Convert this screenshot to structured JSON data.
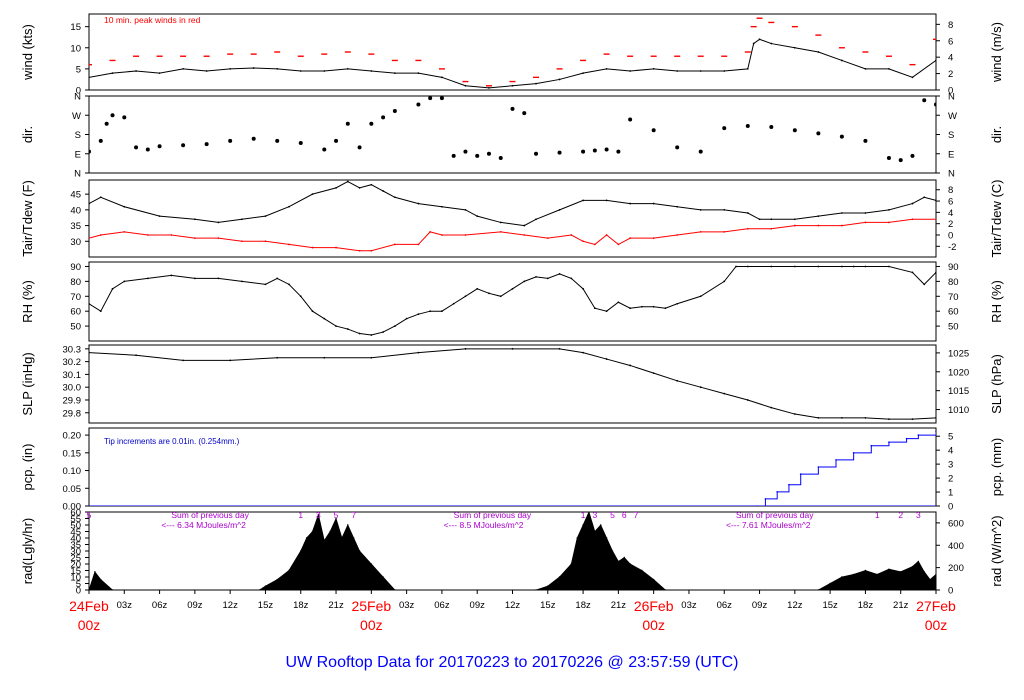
{
  "title": "UW Rooftop Data for 20170223  to  20170226 @ 23:57:59  (UTC)",
  "colors": {
    "primary": "#000000",
    "peak": "#ff0000",
    "dew": "#ff0000",
    "precip": "#0000ff",
    "annot_precip": "#0000cc",
    "solar_text": "#aa00cc",
    "date_red": "#ff0000",
    "title_blue": "#0000ff"
  },
  "time_axis": {
    "start_hour": 0,
    "end_hour": 72,
    "tick_labels": [
      {
        "h": 3,
        "label": "03z"
      },
      {
        "h": 6,
        "label": "06z"
      },
      {
        "h": 9,
        "label": "09z"
      },
      {
        "h": 12,
        "label": "12z"
      },
      {
        "h": 15,
        "label": "15z"
      },
      {
        "h": 18,
        "label": "18z"
      },
      {
        "h": 21,
        "label": "21z"
      },
      {
        "h": 27,
        "label": "03z"
      },
      {
        "h": 30,
        "label": "06z"
      },
      {
        "h": 33,
        "label": "09z"
      },
      {
        "h": 36,
        "label": "12z"
      },
      {
        "h": 39,
        "label": "15z"
      },
      {
        "h": 42,
        "label": "18z"
      },
      {
        "h": 45,
        "label": "21z"
      },
      {
        "h": 51,
        "label": "03z"
      },
      {
        "h": 54,
        "label": "06z"
      },
      {
        "h": 57,
        "label": "09z"
      },
      {
        "h": 60,
        "label": "12z"
      },
      {
        "h": 63,
        "label": "15z"
      },
      {
        "h": 66,
        "label": "18z"
      },
      {
        "h": 69,
        "label": "21z"
      }
    ],
    "date_labels": [
      {
        "h": 0,
        "date": "24Feb",
        "time": "00z"
      },
      {
        "h": 24,
        "date": "25Feb",
        "time": "00z"
      },
      {
        "h": 48,
        "date": "26Feb",
        "time": "00z"
      },
      {
        "h": 72,
        "date": "27Feb",
        "time": "00z"
      }
    ]
  },
  "chart_data": [
    {
      "type": "line",
      "name": "wind",
      "left_label": "wind (kts)",
      "right_label": "wind (m/s)",
      "annotation": "10 min. peak winds in red",
      "ylim": [
        0,
        18
      ],
      "yticks_left": [
        0,
        5,
        10,
        15
      ],
      "ylim_right": [
        0,
        9.26
      ],
      "yticks_right": [
        0,
        2,
        4,
        6,
        8
      ],
      "series": [
        {
          "name": "wind speed (kts)",
          "color": "#000000",
          "x": [
            0,
            2,
            4,
            6,
            8,
            10,
            12,
            14,
            16,
            18,
            20,
            22,
            24,
            26,
            28,
            30,
            32,
            34,
            36,
            38,
            40,
            42,
            44,
            46,
            48,
            50,
            52,
            54,
            56,
            56.5,
            57,
            58,
            60,
            62,
            64,
            66,
            68,
            70,
            72
          ],
          "y": [
            3,
            4,
            4.5,
            4,
            5,
            4.5,
            5,
            5.2,
            5,
            4.5,
            4.5,
            5,
            4.5,
            4,
            4,
            3,
            1,
            0.5,
            1,
            1.5,
            2.5,
            4,
            5,
            4.5,
            5,
            4.5,
            4.5,
            4.5,
            5,
            11,
            12,
            11,
            10,
            9,
            7,
            5,
            5,
            3,
            7
          ]
        },
        {
          "name": "10 min. peak (kts)",
          "color": "#ff0000",
          "x": [
            0,
            2,
            4,
            6,
            8,
            10,
            12,
            14,
            16,
            18,
            20,
            22,
            24,
            26,
            28,
            30,
            32,
            34,
            36,
            38,
            40,
            42,
            44,
            46,
            48,
            50,
            52,
            54,
            56,
            56.5,
            57,
            58,
            60,
            62,
            64,
            66,
            68,
            70,
            72
          ],
          "y": [
            6,
            7,
            8,
            8,
            8,
            8,
            8.5,
            8.5,
            9,
            8,
            8.5,
            9,
            8.5,
            7,
            7,
            5,
            2,
            1,
            2,
            3,
            5,
            7,
            8.5,
            8,
            8,
            8,
            8,
            8,
            9,
            15,
            17,
            16,
            15,
            13,
            10,
            9,
            8,
            6,
            12
          ]
        }
      ]
    },
    {
      "type": "scatter",
      "name": "dir",
      "left_label": "dir.",
      "right_label": "dir.",
      "ylim": [
        0,
        360
      ],
      "yticks": [
        {
          "v": 0,
          "label": "N"
        },
        {
          "v": 90,
          "label": "E"
        },
        {
          "v": 180,
          "label": "S"
        },
        {
          "v": 270,
          "label": "W"
        },
        {
          "v": 360,
          "label": "N"
        }
      ],
      "series": [
        {
          "name": "wind direction (deg)",
          "color": "#000000",
          "x": [
            0,
            1,
            1.5,
            2,
            3,
            4,
            5,
            6,
            8,
            10,
            12,
            14,
            16,
            18,
            20,
            21,
            22,
            23,
            24,
            25,
            26,
            28,
            29,
            30,
            31,
            32,
            33,
            34,
            35,
            36,
            37,
            38,
            40,
            42,
            43,
            44,
            45,
            46,
            48,
            50,
            52,
            54,
            56,
            58,
            60,
            62,
            64,
            66,
            68,
            69,
            70,
            71,
            72
          ],
          "y": [
            100,
            150,
            230,
            270,
            260,
            120,
            110,
            125,
            130,
            135,
            150,
            160,
            150,
            140,
            110,
            150,
            230,
            120,
            230,
            260,
            290,
            320,
            350,
            350,
            80,
            100,
            80,
            90,
            70,
            300,
            280,
            90,
            95,
            100,
            105,
            110,
            100,
            250,
            200,
            120,
            100,
            210,
            220,
            215,
            200,
            185,
            170,
            150,
            70,
            60,
            80,
            340,
            320
          ]
        }
      ]
    },
    {
      "type": "line",
      "name": "temp",
      "left_label": "Tair/Tdew (F)",
      "right_label": "Tair/Tdew (C)",
      "ylim": [
        25,
        49.5
      ],
      "yticks_left": [
        30,
        35,
        40,
        45
      ],
      "yticks_right_c": [
        -2,
        0,
        2,
        4,
        6,
        8
      ],
      "series": [
        {
          "name": "Tair (F)",
          "color": "#000000",
          "x": [
            0,
            1,
            3,
            6,
            9,
            11,
            13,
            15,
            17,
            19,
            21,
            22,
            23,
            24,
            25,
            26,
            28,
            30,
            32,
            33,
            35,
            37,
            38,
            40,
            42,
            44,
            46,
            48,
            50,
            52,
            54,
            56,
            57,
            58,
            60,
            62,
            64,
            66,
            68,
            70,
            71,
            72
          ],
          "y": [
            42,
            44,
            41,
            38,
            37,
            36,
            37,
            38,
            41,
            45,
            47,
            49,
            47,
            48,
            46,
            44,
            42,
            41,
            40,
            38,
            36,
            35,
            37,
            40,
            43,
            43,
            42,
            42,
            41,
            40,
            40,
            39,
            37,
            37,
            37,
            38,
            39,
            39,
            40,
            42,
            44,
            43
          ]
        },
        {
          "name": "Tdew (F)",
          "color": "#ff0000",
          "x": [
            0,
            1,
            3,
            5,
            7,
            9,
            11,
            13,
            15,
            17,
            19,
            21,
            23,
            24,
            26,
            28,
            29,
            30,
            32,
            35,
            37,
            39,
            41,
            42,
            43,
            44,
            45,
            46,
            48,
            50,
            52,
            54,
            56,
            58,
            60,
            62,
            64,
            66,
            68,
            70,
            72
          ],
          "y": [
            31,
            32,
            33,
            32,
            32,
            31,
            31,
            30,
            30,
            29,
            28,
            28,
            27,
            27,
            29,
            29,
            33,
            32,
            32,
            33,
            32,
            31,
            32,
            30,
            29,
            32,
            29,
            31,
            31,
            32,
            33,
            33,
            34,
            34,
            35,
            35,
            35,
            36,
            36,
            37,
            37
          ]
        }
      ]
    },
    {
      "type": "line",
      "name": "rh",
      "left_label": "RH (%)",
      "right_label": "RH (%)",
      "ylim": [
        40,
        93
      ],
      "yticks": [
        50,
        60,
        70,
        80,
        90
      ],
      "series": [
        {
          "name": "RH (%)",
          "color": "#000000",
          "x": [
            0,
            1,
            2,
            3,
            5,
            7,
            9,
            11,
            13,
            15,
            16,
            17,
            18,
            19,
            20,
            21,
            22,
            23,
            24,
            25,
            26,
            27,
            28,
            29,
            30,
            31,
            32,
            33,
            34,
            35,
            36,
            37,
            38,
            39,
            40,
            41,
            42,
            43,
            44,
            45,
            46,
            47,
            48,
            49,
            50,
            52,
            54,
            55,
            56,
            58,
            60,
            62,
            64,
            65,
            66,
            68,
            70,
            71,
            72
          ],
          "y": [
            65,
            60,
            75,
            80,
            82,
            84,
            82,
            82,
            80,
            78,
            82,
            78,
            70,
            60,
            55,
            50,
            48,
            45,
            44,
            46,
            50,
            55,
            58,
            60,
            60,
            65,
            70,
            75,
            72,
            70,
            75,
            80,
            83,
            82,
            85,
            82,
            75,
            62,
            60,
            66,
            62,
            63,
            63,
            62,
            65,
            70,
            80,
            90,
            90,
            90,
            90,
            90,
            90,
            90,
            90,
            90,
            86,
            78,
            86
          ]
        }
      ]
    },
    {
      "type": "line",
      "name": "slp",
      "left_label": "SLP (inHg)",
      "right_label": "SLP (hPa)",
      "ylim": [
        29.72,
        30.33
      ],
      "yticks_left": [
        29.8,
        29.9,
        30.0,
        30.1,
        30.2,
        30.3
      ],
      "yticks_right_hpa": [
        1010,
        1015,
        1020,
        1025
      ],
      "series": [
        {
          "name": "SLP (inHg)",
          "color": "#000000",
          "x": [
            0,
            4,
            8,
            12,
            16,
            20,
            24,
            28,
            32,
            36,
            40,
            42,
            44,
            46,
            48,
            50,
            52,
            54,
            56,
            58,
            60,
            62,
            64,
            66,
            68,
            70,
            72
          ],
          "y": [
            30.27,
            30.25,
            30.21,
            30.21,
            30.23,
            30.23,
            30.23,
            30.27,
            30.3,
            30.3,
            30.3,
            30.27,
            30.22,
            30.17,
            30.11,
            30.05,
            30.0,
            29.95,
            29.9,
            29.84,
            29.79,
            29.76,
            29.76,
            29.76,
            29.75,
            29.75,
            29.76
          ]
        }
      ]
    },
    {
      "type": "line",
      "name": "pcp",
      "left_label": "pcp. (in)",
      "right_label": "pcp. (mm)",
      "annotation": "Tip increments are 0.01in. (0.254mm.)",
      "ylim": [
        0,
        0.22
      ],
      "yticks_left": [
        0.0,
        0.05,
        0.1,
        0.15,
        0.2
      ],
      "yticks_right_mm": [
        0,
        1,
        2,
        3,
        4,
        5
      ],
      "series": [
        {
          "name": "accumulated precip (in)",
          "color": "#0000ff",
          "x": [
            0,
            56.8,
            57.5,
            58.5,
            59.5,
            60.5,
            62,
            63.5,
            65,
            66.5,
            68,
            69.5,
            70.5,
            72
          ],
          "y": [
            0,
            0,
            0.02,
            0.04,
            0.06,
            0.09,
            0.11,
            0.13,
            0.15,
            0.17,
            0.18,
            0.19,
            0.2,
            0.21
          ]
        }
      ]
    },
    {
      "type": "area",
      "name": "rad",
      "left_label": "rad(Lgly/hr)",
      "right_label": "rad (W/m^2)",
      "ylim": [
        0,
        60
      ],
      "yticks_left": [
        0,
        5,
        10,
        15,
        20,
        25,
        30,
        35,
        40,
        45,
        50,
        55,
        60
      ],
      "yticks_right_wm2": [
        0,
        200,
        400,
        600
      ],
      "annotations": [
        {
          "h": 7,
          "line1": "Sum of previous day",
          "line2": "<--- 6.34 MJoules/m^2"
        },
        {
          "h": 31,
          "line1": "Sum of previous day",
          "line2": "<--- 8.5 MJoules/m^2"
        },
        {
          "h": 55,
          "line1": "Sum of previous day",
          "line2": "<--- 7.61 MJoules/m^2"
        }
      ],
      "hour_markers": [
        {
          "h": 0,
          "label": "5"
        },
        {
          "h": 18,
          "label": "1"
        },
        {
          "h": 19.5,
          "label": "3"
        },
        {
          "h": 21,
          "label": "5"
        },
        {
          "h": 22.5,
          "label": "7"
        },
        {
          "h": 42,
          "label": "1"
        },
        {
          "h": 43,
          "label": "3"
        },
        {
          "h": 44.5,
          "label": "5"
        },
        {
          "h": 45.5,
          "label": "6"
        },
        {
          "h": 46.5,
          "label": "7"
        },
        {
          "h": 67,
          "label": "1"
        },
        {
          "h": 69,
          "label": "2"
        },
        {
          "h": 70.5,
          "label": "3"
        }
      ],
      "series": [
        {
          "name": "solar radiation (Lgly/hr)",
          "color": "#000000",
          "x": [
            0,
            0.5,
            1,
            2,
            14.5,
            15,
            16,
            17,
            18,
            18.5,
            19,
            19.5,
            20,
            20.5,
            21,
            21.5,
            22,
            22.5,
            23,
            24,
            25,
            26,
            38,
            39,
            40,
            41,
            41.5,
            42,
            42.5,
            43,
            43.5,
            44,
            44.5,
            45,
            45.5,
            46,
            47,
            48,
            49,
            62,
            63,
            64,
            65,
            66,
            67,
            68,
            69,
            70,
            70.5,
            71,
            71.5,
            72
          ],
          "y": [
            0,
            14,
            8,
            0,
            0,
            3,
            8,
            15,
            30,
            40,
            45,
            58,
            38,
            45,
            55,
            40,
            50,
            40,
            30,
            20,
            10,
            0,
            0,
            3,
            10,
            20,
            40,
            50,
            60,
            45,
            50,
            40,
            30,
            22,
            25,
            20,
            15,
            8,
            0,
            0,
            5,
            10,
            12,
            15,
            12,
            16,
            14,
            18,
            22,
            14,
            8,
            12
          ]
        }
      ]
    }
  ]
}
